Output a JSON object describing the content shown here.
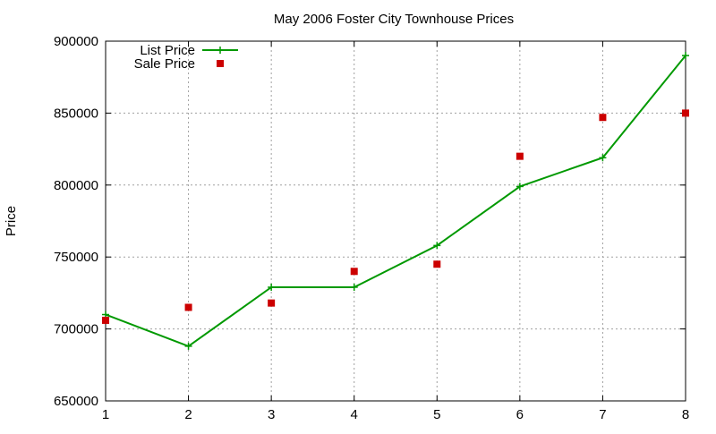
{
  "chart_data": {
    "type": "line",
    "title": "May 2006 Foster City Townhouse Prices",
    "xlabel": "",
    "ylabel": "Price",
    "xlim": [
      1,
      8
    ],
    "ylim": [
      650000,
      900000
    ],
    "x_ticks": [
      1,
      2,
      3,
      4,
      5,
      6,
      7,
      8
    ],
    "y_ticks": [
      650000,
      700000,
      750000,
      800000,
      850000,
      900000
    ],
    "grid": true,
    "legend_position": "top-left",
    "x": [
      1,
      2,
      3,
      4,
      5,
      6,
      7,
      8
    ],
    "series": [
      {
        "name": "List Price",
        "style": "line+plus",
        "color": "#009900",
        "values": [
          710000,
          688000,
          729000,
          729000,
          758000,
          799000,
          819000,
          890000
        ]
      },
      {
        "name": "Sale Price",
        "style": "square-points",
        "color": "#cc0000",
        "values": [
          706000,
          715000,
          718000,
          740000,
          745000,
          820000,
          847000,
          850000
        ]
      }
    ]
  }
}
